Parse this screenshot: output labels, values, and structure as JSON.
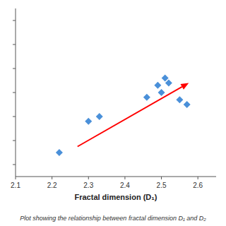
{
  "chart_data": {
    "type": "scatter",
    "x": [
      2.22,
      2.3,
      2.33,
      2.46,
      2.49,
      2.5,
      2.51,
      2.52,
      2.55,
      2.57
    ],
    "y": [
      2.15,
      2.28,
      2.3,
      2.38,
      2.43,
      2.4,
      2.46,
      2.44,
      2.37,
      2.35
    ],
    "color": "#4a90d9",
    "marker": "diamond",
    "arrow": {
      "x": [
        2.27,
        2.575
      ],
      "y": [
        2.175,
        2.44
      ],
      "color": "red"
    },
    "xlabel": "Fractal dimension (D₁)",
    "caption": "Plot showing the relationship between fractal dimension D₁ and D₂",
    "xlim": [
      2.1,
      2.65
    ],
    "ylim": [
      2.05,
      2.75
    ],
    "xticks": [
      2.1,
      2.2,
      2.3,
      2.4,
      2.5,
      2.6
    ],
    "yticks": [
      2.1,
      2.2,
      2.3,
      2.4,
      2.5,
      2.6,
      2.7
    ],
    "tick_labels": "x",
    "grid": false
  }
}
